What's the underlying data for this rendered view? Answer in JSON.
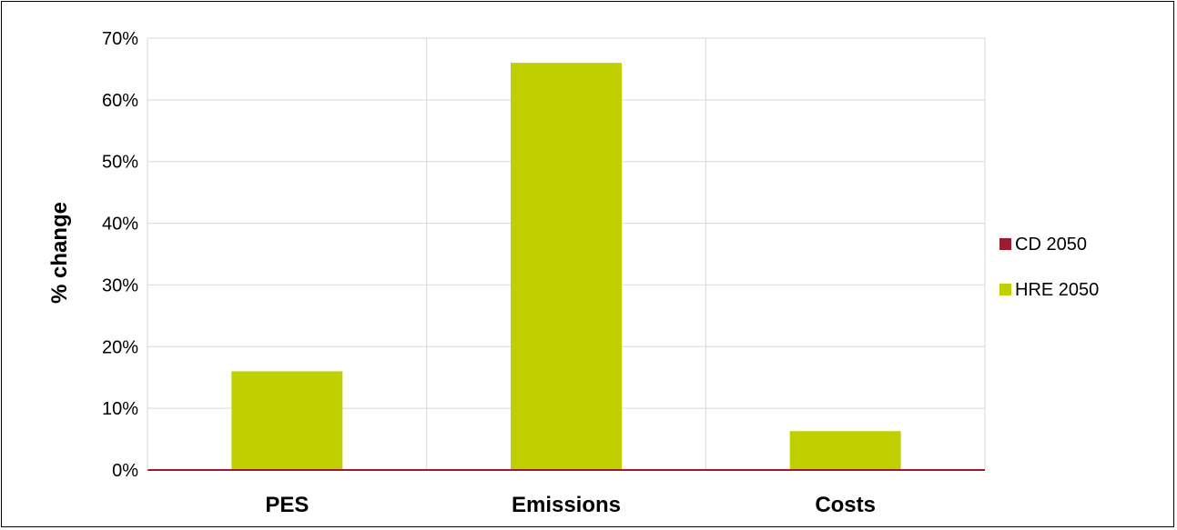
{
  "chart_data": {
    "type": "bar",
    "categories": [
      "PES",
      "Emissions",
      "Costs"
    ],
    "series": [
      {
        "name": "CD 2050",
        "values": [
          0,
          0,
          0
        ],
        "color": "#9b1b30"
      },
      {
        "name": "HRE 2050",
        "values": [
          16,
          66,
          6.3
        ],
        "color": "#c0cf00"
      }
    ],
    "xlabel": "",
    "ylabel": "% change",
    "ylim": [
      0,
      70
    ],
    "yticks": [
      0,
      10,
      20,
      30,
      40,
      50,
      60,
      70
    ],
    "ytick_labels": [
      "0%",
      "10%",
      "20%",
      "30%",
      "40%",
      "50%",
      "60%",
      "70%"
    ],
    "grid": true,
    "legend_position": "right"
  }
}
